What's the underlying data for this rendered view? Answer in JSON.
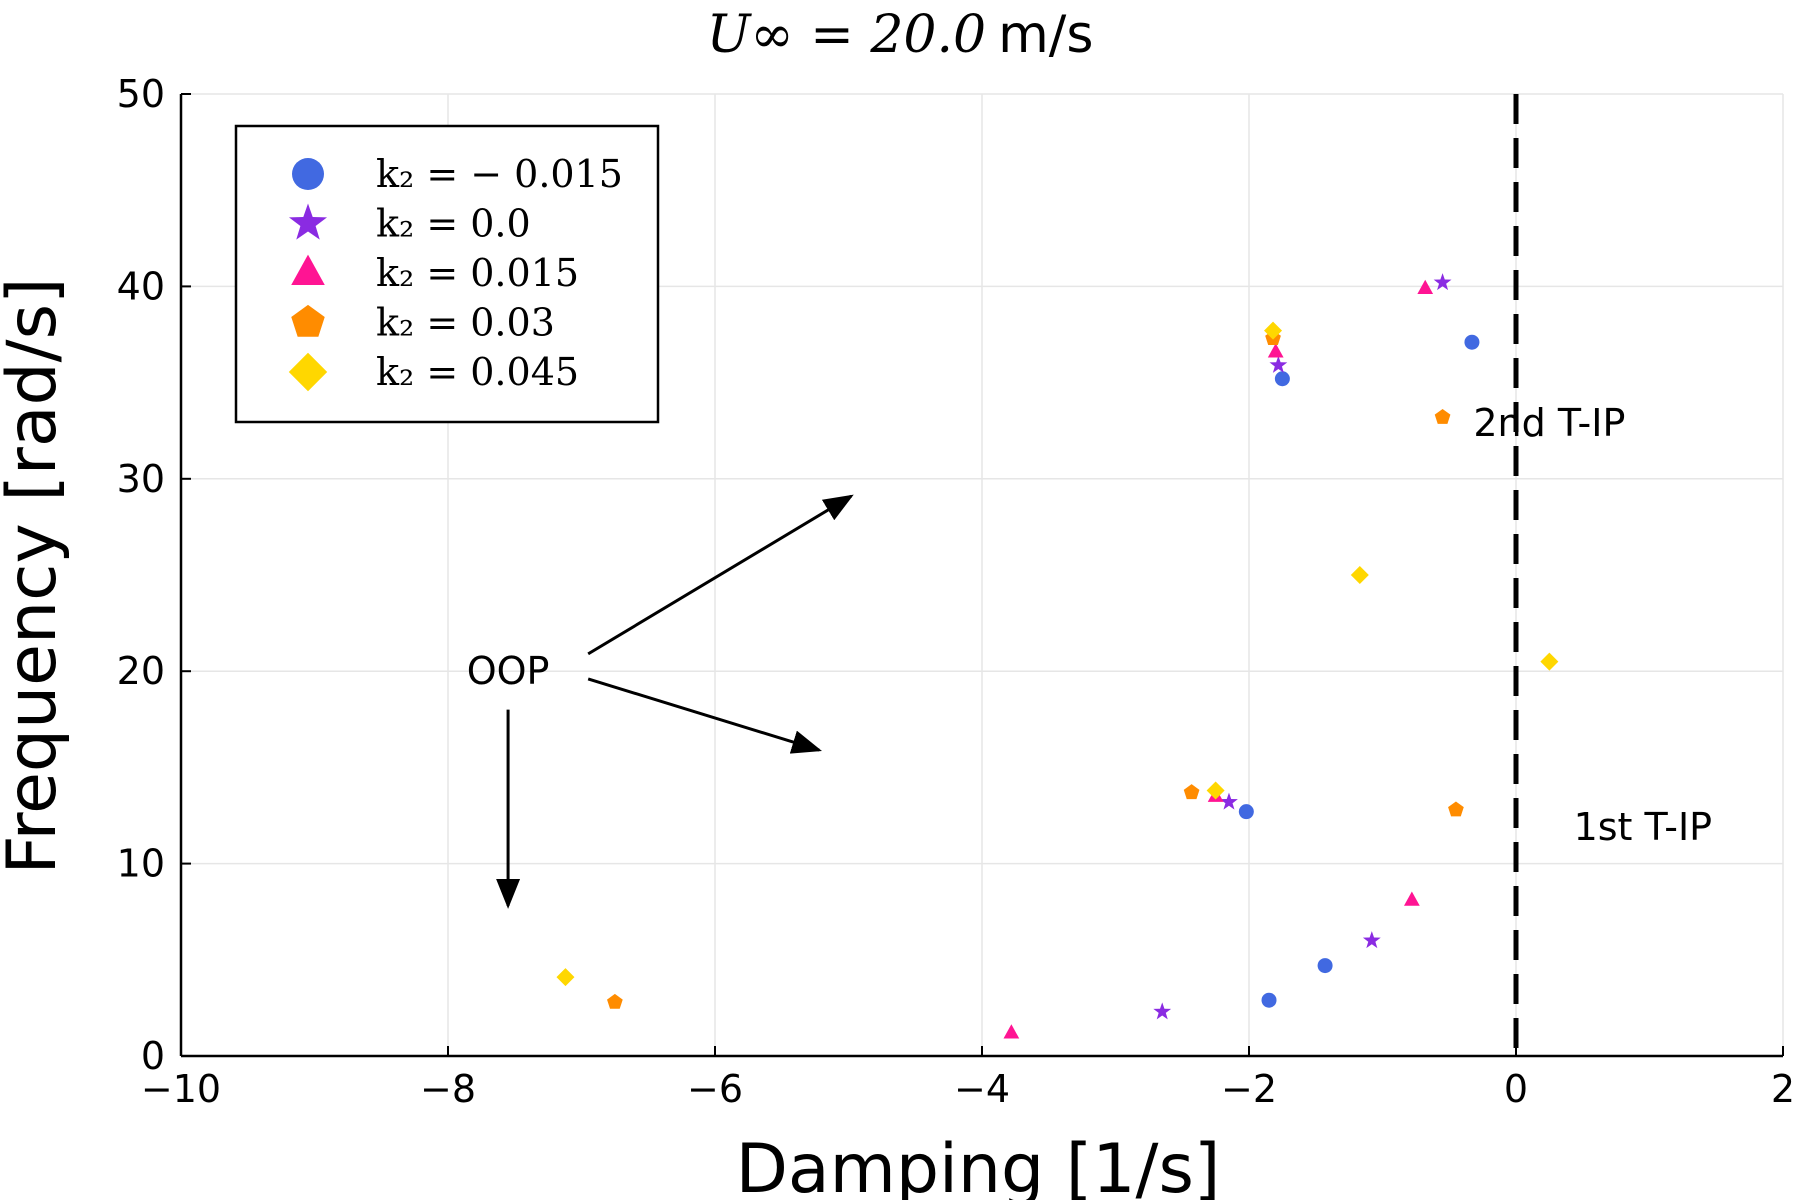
{
  "chart_data": {
    "type": "scatter",
    "title": {
      "math": "U∞ = 20.0",
      "unit": "m/s"
    },
    "xlabel": "Damping [1/s]",
    "ylabel": "Frequency [rad/s]",
    "xlim": [
      -10,
      2
    ],
    "ylim": [
      0,
      50
    ],
    "x_ticks": [
      -10,
      -8,
      -6,
      -4,
      -2,
      0,
      2
    ],
    "x_tick_labels": [
      "−10",
      "−8",
      "−6",
      "−4",
      "−2",
      "0",
      "2"
    ],
    "y_ticks": [
      0,
      10,
      20,
      30,
      40,
      50
    ],
    "y_tick_labels": [
      "0",
      "10",
      "20",
      "30",
      "40",
      "50"
    ],
    "grid": true,
    "legend_position": "top-left",
    "reference_line": {
      "x": 0,
      "style": "dashed",
      "color": "#000000"
    },
    "series": [
      {
        "name": "k2 = −0.015",
        "legend_label": "k₂ = − 0.015",
        "marker": "circle",
        "color": "#4169E1",
        "points": [
          [
            -0.33,
            37.1
          ],
          [
            -1.75,
            35.2
          ],
          [
            -2.02,
            12.7
          ],
          [
            -1.43,
            4.7
          ],
          [
            -1.85,
            2.9
          ]
        ]
      },
      {
        "name": "k2 = 0.0",
        "legend_label": "k₂ = 0.0",
        "marker": "star",
        "color": "#8A2BE2",
        "points": [
          [
            -0.55,
            40.2
          ],
          [
            -1.78,
            35.9
          ],
          [
            -2.15,
            13.2
          ],
          [
            -1.08,
            6.0
          ],
          [
            -2.65,
            2.3
          ]
        ]
      },
      {
        "name": "k2 = 0.015",
        "legend_label": "k₂ = 0.015",
        "marker": "triangle",
        "color": "#FF1493",
        "points": [
          [
            -0.68,
            39.9
          ],
          [
            -1.8,
            36.6
          ],
          [
            -2.25,
            13.5
          ],
          [
            -0.78,
            8.1
          ],
          [
            -3.78,
            1.2
          ]
        ]
      },
      {
        "name": "k2 = 0.03",
        "legend_label": "k₂ = 0.03",
        "marker": "pentagon",
        "color": "#FF8C00",
        "points": [
          [
            -0.55,
            33.2
          ],
          [
            -1.82,
            37.3
          ],
          [
            -2.43,
            13.7
          ],
          [
            -0.45,
            12.8
          ],
          [
            -6.75,
            2.8
          ]
        ]
      },
      {
        "name": "k2 = 0.045",
        "legend_label": "k₂ = 0.045",
        "marker": "diamond",
        "color": "#FFD700",
        "points": [
          [
            -1.82,
            37.7
          ],
          [
            -1.17,
            25.0
          ],
          [
            0.25,
            20.5
          ],
          [
            -2.25,
            13.8
          ],
          [
            -7.12,
            4.1
          ]
        ]
      }
    ],
    "annotations": [
      {
        "text": "OOP",
        "x": -7.55,
        "y": 20
      },
      {
        "text": "2nd T-IP",
        "x": 0.25,
        "y": 32.9
      },
      {
        "text": "1st T-IP",
        "x": 0.95,
        "y": 11.9
      }
    ],
    "arrows": [
      {
        "from": [
          -6.95,
          20.9
        ],
        "to": [
          -4.98,
          29.1
        ]
      },
      {
        "from": [
          -6.95,
          19.6
        ],
        "to": [
          -5.22,
          15.9
        ]
      },
      {
        "from": [
          -7.55,
          18.0
        ],
        "to": [
          -7.55,
          7.8
        ]
      }
    ]
  }
}
